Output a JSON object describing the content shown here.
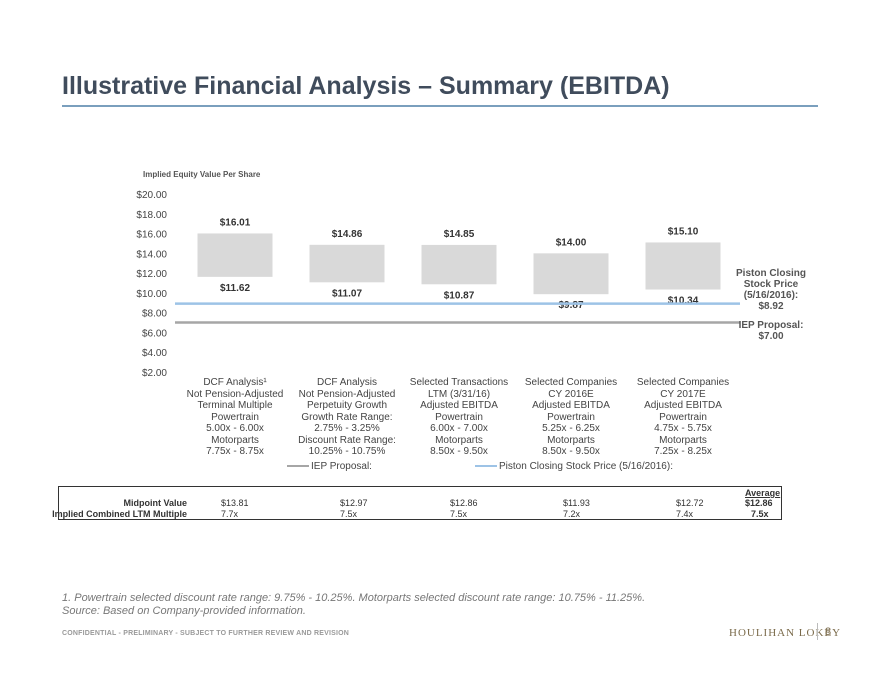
{
  "title": "Illustrative Financial Analysis – Summary (EBITDA)",
  "chart_subtitle": "Implied Equity Value Per Share",
  "chart_data": {
    "type": "floating-bar",
    "ylabel": "Implied Equity Value Per Share",
    "ylim": [
      2,
      20
    ],
    "yticks": [
      "$20.00",
      "$18.00",
      "$16.00",
      "$14.00",
      "$12.00",
      "$10.00",
      "$8.00",
      "$6.00",
      "$4.00",
      "$2.00"
    ],
    "ytick_values": [
      20,
      18,
      16,
      14,
      12,
      10,
      8,
      6,
      4,
      2
    ],
    "categories": [
      [
        "DCF Analysis¹",
        "Not Pension-Adjusted",
        "Terminal Multiple",
        "Powertrain",
        "5.00x - 6.00x",
        "Motorparts",
        "7.75x - 8.75x"
      ],
      [
        "DCF Analysis",
        "Not Pension-Adjusted",
        "Perpetuity Growth",
        "Growth Rate Range:",
        "2.75% - 3.25%",
        "Discount Rate Range:",
        "10.25% - 10.75%"
      ],
      [
        "Selected Transactions",
        "LTM (3/31/16)",
        "Adjusted EBITDA",
        "Powertrain",
        "6.00x - 7.00x",
        "Motorparts",
        "8.50x - 9.50x"
      ],
      [
        "Selected Companies",
        "CY 2016E",
        "Adjusted EBITDA",
        "Powertrain",
        "5.25x - 6.25x",
        "Motorparts",
        "8.50x - 9.50x"
      ],
      [
        "Selected Companies",
        "CY 2017E",
        "Adjusted EBITDA",
        "Powertrain",
        "4.75x - 5.75x",
        "Motorparts",
        "7.25x - 8.25x"
      ]
    ],
    "high": [
      16.01,
      14.86,
      14.85,
      14.0,
      15.1
    ],
    "low": [
      11.62,
      11.07,
      10.87,
      9.87,
      10.34
    ],
    "high_labels": [
      "$16.01",
      "$14.86",
      "$14.85",
      "$14.00",
      "$15.10"
    ],
    "low_labels": [
      "$11.62",
      "$11.07",
      "$10.87",
      "$9.87",
      "$10.34"
    ],
    "reference_lines": [
      {
        "name": "IEP Proposal:",
        "value": 7.0,
        "color": "#a6a6a6"
      },
      {
        "name": "Piston Closing Stock Price (5/16/2016):",
        "value": 8.92,
        "color": "#9dc3e6"
      }
    ],
    "right_labels": {
      "piston": [
        "Piston Closing",
        "Stock Price",
        "(5/16/2016):",
        "$8.92"
      ],
      "iep": [
        "IEP Proposal:",
        "$7.00"
      ]
    },
    "bar_color": "#d9d9d9"
  },
  "legend": {
    "iep": "IEP Proposal:",
    "piston": "Piston Closing Stock Price (5/16/2016):"
  },
  "table": {
    "average_header": "Average",
    "rows": [
      {
        "label": "Midpoint Value",
        "values": [
          "$13.81",
          "$12.97",
          "$12.86",
          "$11.93",
          "$12.72"
        ],
        "average": "$12.86"
      },
      {
        "label": "Implied Combined LTM Multiple",
        "values": [
          "7.7x",
          "7.5x",
          "7.5x",
          "7.2x",
          "7.4x"
        ],
        "average": "7.5x"
      }
    ]
  },
  "footnote": [
    "1. Powertrain selected discount rate range: 9.75% - 10.25%. Motorparts selected discount rate range: 10.75% - 11.25%.",
    "Source: Based on Company-provided information."
  ],
  "confidential": "CONFIDENTIAL - PRELIMINARY - SUBJECT TO FURTHER REVIEW AND REVISION",
  "brand": "HOULIHAN LOKEY",
  "page_number": "8"
}
